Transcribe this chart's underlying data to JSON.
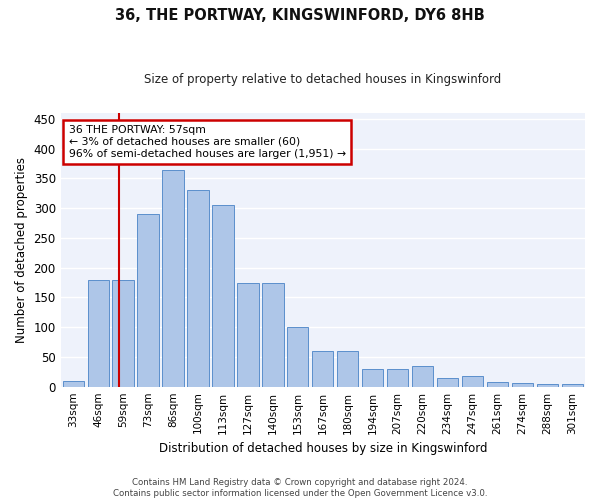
{
  "title": "36, THE PORTWAY, KINGSWINFORD, DY6 8HB",
  "subtitle": "Size of property relative to detached houses in Kingswinford",
  "xlabel": "Distribution of detached houses by size in Kingswinford",
  "ylabel": "Number of detached properties",
  "footer_line1": "Contains HM Land Registry data © Crown copyright and database right 2024.",
  "footer_line2": "Contains public sector information licensed under the Open Government Licence v3.0.",
  "categories": [
    "33sqm",
    "46sqm",
    "59sqm",
    "73sqm",
    "86sqm",
    "100sqm",
    "113sqm",
    "127sqm",
    "140sqm",
    "153sqm",
    "167sqm",
    "180sqm",
    "194sqm",
    "207sqm",
    "220sqm",
    "234sqm",
    "247sqm",
    "261sqm",
    "274sqm",
    "288sqm",
    "301sqm"
  ],
  "values": [
    10,
    180,
    180,
    290,
    365,
    330,
    305,
    175,
    175,
    100,
    60,
    60,
    30,
    30,
    35,
    15,
    18,
    8,
    6,
    5,
    5
  ],
  "bar_color": "#aec6e8",
  "bar_edge_color": "#5b8fcc",
  "bg_color": "#eef2fb",
  "grid_color": "#ffffff",
  "annotation_box_color": "#cc0000",
  "annotation_line1": "36 THE PORTWAY: 57sqm",
  "annotation_line2": "← 3% of detached houses are smaller (60)",
  "annotation_line3": "96% of semi-detached houses are larger (1,951) →",
  "vline_color": "#cc0000",
  "ylim": [
    0,
    460
  ],
  "yticks": [
    0,
    50,
    100,
    150,
    200,
    250,
    300,
    350,
    400,
    450
  ]
}
